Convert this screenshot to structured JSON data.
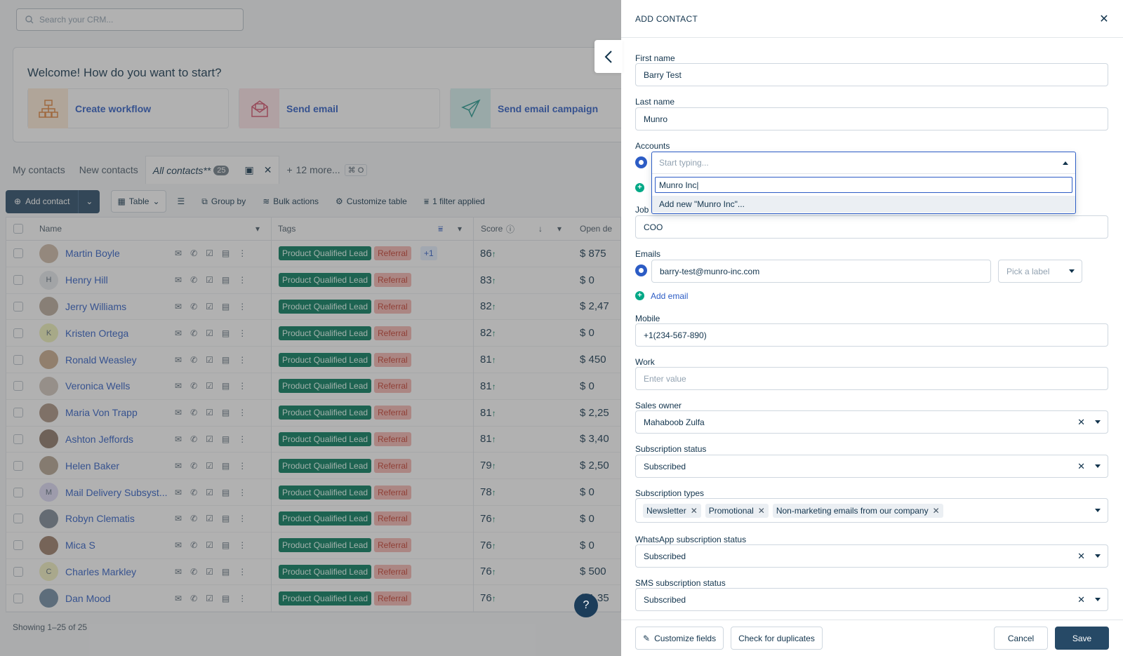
{
  "search": {
    "placeholder": "Search your CRM..."
  },
  "welcome": {
    "title": "Welcome! How do you want to start?",
    "cards": [
      {
        "label": "Create workflow",
        "icon": "workflow-icon"
      },
      {
        "label": "Send email",
        "icon": "email-icon"
      },
      {
        "label": "Send email campaign",
        "icon": "paper-plane-icon"
      }
    ]
  },
  "views": {
    "my": "My contacts",
    "new": "New contacts",
    "all": "All contacts**",
    "all_count": "25",
    "more": "12 more...",
    "shortcut": "⌘ O"
  },
  "toolbar": {
    "add": "Add contact",
    "table": "Table",
    "group": "Group by",
    "bulk": "Bulk actions",
    "customize": "Customize table",
    "filter": "1 filter applied"
  },
  "columns": {
    "name": "Name",
    "tags": "Tags",
    "score": "Score",
    "deals": "Open de"
  },
  "tags": {
    "pql": "Product Qualified Lead",
    "ref": "Referral",
    "more": "+1"
  },
  "rows": [
    {
      "name": "Martin Boyle",
      "initial": "",
      "score": "86",
      "deal": "$ 875",
      "more": true
    },
    {
      "name": "Henry Hill",
      "initial": "H",
      "score": "83",
      "deal": "$ 0"
    },
    {
      "name": "Jerry Williams",
      "initial": "",
      "score": "82",
      "deal": "$ 2,47"
    },
    {
      "name": "Kristen Ortega",
      "initial": "K",
      "score": "82",
      "deal": "$ 0"
    },
    {
      "name": "Ronald Weasley",
      "initial": "",
      "score": "81",
      "deal": "$ 450"
    },
    {
      "name": "Veronica Wells",
      "initial": "",
      "score": "81",
      "deal": "$ 0"
    },
    {
      "name": "Maria Von Trapp",
      "initial": "",
      "score": "81",
      "deal": "$ 2,25"
    },
    {
      "name": "Ashton Jeffords",
      "initial": "",
      "score": "81",
      "deal": "$ 3,40"
    },
    {
      "name": "Helen Baker",
      "initial": "",
      "score": "79",
      "deal": "$ 2,50"
    },
    {
      "name": "Mail Delivery Subsyst...",
      "initial": "M",
      "score": "78",
      "deal": "$ 0"
    },
    {
      "name": "Robyn Clematis",
      "initial": "",
      "score": "76",
      "deal": "$ 0"
    },
    {
      "name": "Mica S",
      "initial": "",
      "score": "76",
      "deal": "$ 0"
    },
    {
      "name": "Charles Markley",
      "initial": "C",
      "score": "76",
      "deal": "$ 500"
    },
    {
      "name": "Dan Mood",
      "initial": "",
      "score": "76",
      "deal": "$ 1,35"
    }
  ],
  "footer": "Showing 1–25 of 25",
  "help": "?",
  "drawer": {
    "title": "ADD CONTACT",
    "first_name": {
      "label": "First name",
      "value": "Barry Test"
    },
    "last_name": {
      "label": "Last name",
      "value": "Munro"
    },
    "accounts": {
      "label": "Accounts",
      "placeholder": "Start typing...",
      "typed": "Munro Inc",
      "option": "Add new \"Munro Inc\"..."
    },
    "job": {
      "label": "Job",
      "value": "COO"
    },
    "emails": {
      "label": "Emails",
      "value": "barry-test@munro-inc.com",
      "label_placeholder": "Pick a label",
      "add": "Add email"
    },
    "mobile": {
      "label": "Mobile",
      "value": "+1(234-567-890)"
    },
    "work": {
      "label": "Work",
      "placeholder": "Enter value"
    },
    "owner": {
      "label": "Sales owner",
      "value": "Mahaboob Zulfa"
    },
    "sub_status": {
      "label": "Subscription status",
      "value": "Subscribed"
    },
    "sub_types": {
      "label": "Subscription types",
      "chips": [
        "Newsletter",
        "Promotional",
        "Non-marketing emails from our company"
      ]
    },
    "whatsapp": {
      "label": "WhatsApp subscription status",
      "value": "Subscribed"
    },
    "sms": {
      "label": "SMS subscription status",
      "value": "Subscribed"
    },
    "footer": {
      "customize": "Customize fields",
      "duplicates": "Check for duplicates",
      "cancel": "Cancel",
      "save": "Save"
    }
  },
  "colors": {
    "primary": "#264966",
    "link": "#2c5cc5",
    "pql": "#00795b",
    "referral": "#f5b5b0"
  }
}
